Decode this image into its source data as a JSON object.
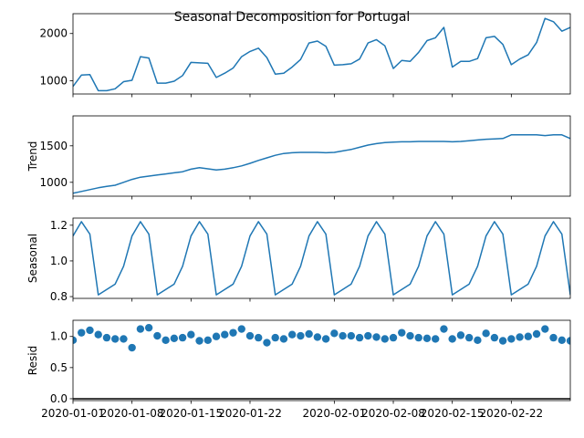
{
  "chart_data": {
    "type": "line",
    "title": "Seasonal Decomposition for Portugal",
    "series_color": "#1f77b4",
    "dates": [
      "2020-01-01",
      "2020-01-02",
      "2020-01-03",
      "2020-01-04",
      "2020-01-05",
      "2020-01-06",
      "2020-01-07",
      "2020-01-08",
      "2020-01-09",
      "2020-01-10",
      "2020-01-11",
      "2020-01-12",
      "2020-01-13",
      "2020-01-14",
      "2020-01-15",
      "2020-01-16",
      "2020-01-17",
      "2020-01-18",
      "2020-01-19",
      "2020-01-20",
      "2020-01-21",
      "2020-01-22",
      "2020-01-23",
      "2020-01-24",
      "2020-01-25",
      "2020-01-26",
      "2020-01-27",
      "2020-01-28",
      "2020-01-29",
      "2020-01-30",
      "2020-01-31",
      "2020-02-01",
      "2020-02-02",
      "2020-02-03",
      "2020-02-04",
      "2020-02-05",
      "2020-02-06",
      "2020-02-07",
      "2020-02-08",
      "2020-02-09",
      "2020-02-10",
      "2020-02-11",
      "2020-02-12",
      "2020-02-13",
      "2020-02-14",
      "2020-02-15",
      "2020-02-16",
      "2020-02-17",
      "2020-02-18",
      "2020-02-19",
      "2020-02-20",
      "2020-02-21",
      "2020-02-22",
      "2020-02-23",
      "2020-02-24",
      "2020-02-25",
      "2020-02-26",
      "2020-02-27",
      "2020-02-28",
      "2020-02-29"
    ],
    "xtick_labels": [
      "2020-01-01",
      "2020-01-08",
      "2020-01-15",
      "2020-01-22",
      "2020-02-01",
      "2020-02-08",
      "2020-02-15",
      "2020-02-22"
    ],
    "panels": [
      {
        "ylabel": "",
        "style": "line",
        "ylim": [
          720,
          2420
        ],
        "yticks": [
          1000,
          2000
        ],
        "ytick_labels": [
          "1000",
          "2000"
        ],
        "values": [
          880,
          1120,
          1130,
          790,
          790,
          830,
          980,
          1010,
          1510,
          1480,
          950,
          950,
          990,
          1110,
          1390,
          1380,
          1370,
          1070,
          1160,
          1270,
          1510,
          1620,
          1690,
          1490,
          1140,
          1160,
          1290,
          1450,
          1800,
          1840,
          1730,
          1330,
          1340,
          1360,
          1460,
          1800,
          1870,
          1740,
          1260,
          1430,
          1410,
          1600,
          1850,
          1910,
          2130,
          1290,
          1410,
          1410,
          1470,
          1910,
          1940,
          1770,
          1340,
          1460,
          1550,
          1810,
          2320,
          2250,
          2050,
          2130
        ]
      },
      {
        "ylabel": "Trend",
        "style": "line",
        "ylim": [
          810,
          1910
        ],
        "yticks": [
          1000,
          1500
        ],
        "ytick_labels": [
          "1000",
          "1500"
        ],
        "values": [
          850,
          875,
          900,
          925,
          945,
          960,
          1000,
          1040,
          1070,
          1085,
          1100,
          1115,
          1130,
          1145,
          1180,
          1200,
          1185,
          1170,
          1180,
          1200,
          1225,
          1260,
          1300,
          1335,
          1370,
          1395,
          1405,
          1410,
          1410,
          1410,
          1405,
          1410,
          1430,
          1450,
          1480,
          1510,
          1530,
          1545,
          1550,
          1555,
          1555,
          1560,
          1560,
          1560,
          1560,
          1555,
          1560,
          1570,
          1580,
          1590,
          1595,
          1600,
          1650,
          1650,
          1650,
          1650,
          1640,
          1650,
          1650,
          1600
        ]
      },
      {
        "ylabel": "Seasonal",
        "style": "line",
        "ylim": [
          0.79,
          1.24
        ],
        "yticks": [
          0.8,
          1.0,
          1.2
        ],
        "ytick_labels": [
          "0.8",
          "1.0",
          "1.2"
        ],
        "values": [
          1.14,
          1.22,
          1.15,
          0.81,
          0.84,
          0.87,
          0.97,
          1.14,
          1.22,
          1.15,
          0.81,
          0.84,
          0.87,
          0.97,
          1.14,
          1.22,
          1.15,
          0.81,
          0.84,
          0.87,
          0.97,
          1.14,
          1.22,
          1.15,
          0.81,
          0.84,
          0.87,
          0.97,
          1.14,
          1.22,
          1.15,
          0.81,
          0.84,
          0.87,
          0.97,
          1.14,
          1.22,
          1.15,
          0.81,
          0.84,
          0.87,
          0.97,
          1.14,
          1.22,
          1.15,
          0.81,
          0.84,
          0.87,
          0.97,
          1.14,
          1.22,
          1.15,
          0.81,
          0.84,
          0.87,
          0.97,
          1.14,
          1.22,
          1.15,
          0.81
        ]
      },
      {
        "ylabel": "Resid",
        "style": "scatter",
        "ylim": [
          -0.03,
          1.26
        ],
        "yticks": [
          0.0,
          0.5,
          1.0
        ],
        "ytick_labels": [
          "0.0",
          "0.5",
          "1.0"
        ],
        "baseline": 0,
        "values": [
          0.94,
          1.06,
          1.1,
          1.03,
          0.98,
          0.96,
          0.96,
          0.82,
          1.12,
          1.14,
          1.01,
          0.94,
          0.97,
          0.98,
          1.03,
          0.93,
          0.94,
          1.0,
          1.03,
          1.06,
          1.12,
          1.01,
          0.98,
          0.9,
          0.98,
          0.96,
          1.03,
          1.01,
          1.04,
          0.99,
          0.96,
          1.05,
          1.01,
          1.01,
          0.98,
          1.01,
          0.99,
          0.96,
          0.98,
          1.06,
          1.01,
          0.98,
          0.97,
          0.96,
          1.12,
          0.96,
          1.02,
          0.98,
          0.94,
          1.05,
          0.98,
          0.93,
          0.96,
          0.99,
          1.0,
          1.04,
          1.12,
          0.98,
          0.94,
          0.93
        ]
      }
    ]
  }
}
